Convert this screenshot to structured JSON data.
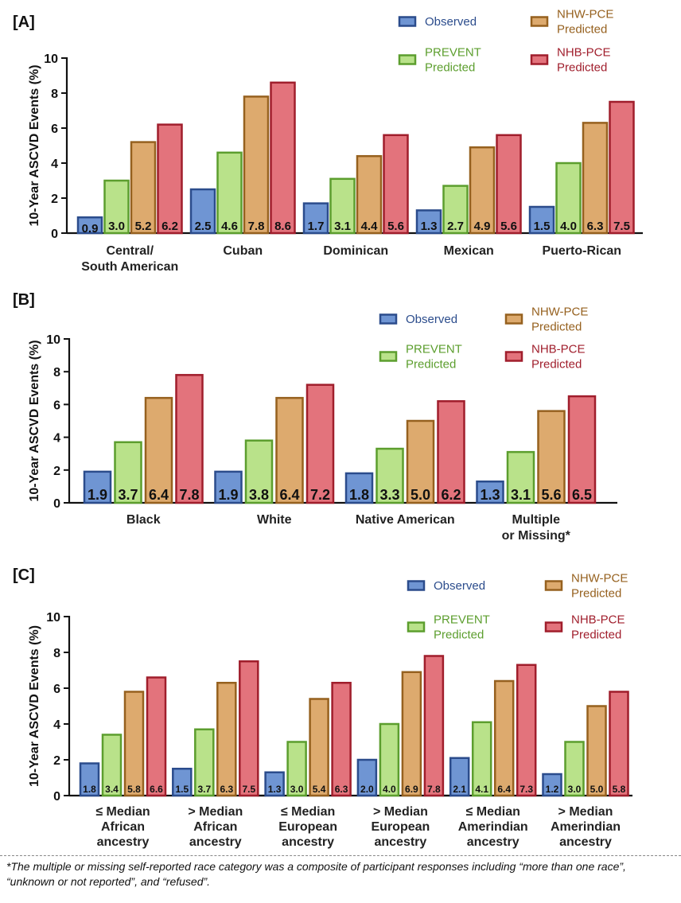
{
  "colors": {
    "observed": {
      "fill": "#6f95d3",
      "stroke": "#2b4c8c"
    },
    "prevent": {
      "fill": "#b9e28a",
      "stroke": "#5c9e2e"
    },
    "nhw": {
      "fill": "#ddaa6e",
      "stroke": "#96611f"
    },
    "nhb": {
      "fill": "#e3737c",
      "stroke": "#a01e2c"
    }
  },
  "legend": {
    "observed": "Observed",
    "prevent": [
      "PREVENT",
      "Predicted"
    ],
    "nhw": [
      "NHW-PCE",
      "Predicted"
    ],
    "nhb": [
      "NHB-PCE",
      "Predicted"
    ]
  },
  "chart_data": [
    {
      "id": "A",
      "panel_label": "[A]",
      "type": "bar",
      "ylabel": "10-Year ASCVD Events (%)",
      "ylim": [
        0,
        10
      ],
      "yticks": [
        0,
        2,
        4,
        6,
        8,
        10
      ],
      "categories": [
        [
          "Central/",
          "South American"
        ],
        [
          "Cuban"
        ],
        [
          "Dominican"
        ],
        [
          "Mexican"
        ],
        [
          "Puerto-Rican"
        ]
      ],
      "series": [
        {
          "name": "Observed",
          "key": "observed",
          "values": [
            0.9,
            2.5,
            1.7,
            1.3,
            1.5
          ]
        },
        {
          "name": "PREVENT Predicted",
          "key": "prevent",
          "values": [
            3.0,
            4.6,
            3.1,
            2.7,
            4.0
          ]
        },
        {
          "name": "NHW-PCE Predicted",
          "key": "nhw",
          "values": [
            5.2,
            7.8,
            4.4,
            4.9,
            6.3
          ]
        },
        {
          "name": "NHB-PCE Predicted",
          "key": "nhb",
          "values": [
            6.2,
            8.6,
            5.6,
            5.6,
            7.5
          ]
        }
      ]
    },
    {
      "id": "B",
      "panel_label": "[B]",
      "type": "bar",
      "ylabel": "10-Year ASCVD Events (%)",
      "ylim": [
        0,
        10
      ],
      "yticks": [
        0,
        2,
        4,
        6,
        8,
        10
      ],
      "categories": [
        [
          "Black"
        ],
        [
          "White"
        ],
        [
          "Native American"
        ],
        [
          "Multiple",
          "or Missing*"
        ]
      ],
      "series": [
        {
          "name": "Observed",
          "key": "observed",
          "values": [
            1.9,
            1.9,
            1.8,
            1.3
          ]
        },
        {
          "name": "PREVENT Predicted",
          "key": "prevent",
          "values": [
            3.7,
            3.8,
            3.3,
            3.1
          ]
        },
        {
          "name": "NHW-PCE Predicted",
          "key": "nhw",
          "values": [
            6.4,
            6.4,
            5.0,
            5.6
          ]
        },
        {
          "name": "NHB-PCE Predicted",
          "key": "nhb",
          "values": [
            7.8,
            7.2,
            6.2,
            6.5
          ]
        }
      ]
    },
    {
      "id": "C",
      "panel_label": "[C]",
      "type": "bar",
      "ylabel": "10-Year ASCVD Events (%)",
      "ylim": [
        0,
        10
      ],
      "yticks": [
        0,
        2,
        4,
        6,
        8,
        10
      ],
      "categories": [
        [
          "≤ Median",
          "African",
          "ancestry"
        ],
        [
          "> Median",
          "African",
          "ancestry"
        ],
        [
          "≤ Median",
          "European",
          "ancestry"
        ],
        [
          "> Median",
          "European",
          "ancestry"
        ],
        [
          "≤ Median",
          "Amerindian",
          "ancestry"
        ],
        [
          "> Median",
          "Amerindian",
          "ancestry"
        ]
      ],
      "series": [
        {
          "name": "Observed",
          "key": "observed",
          "values": [
            1.8,
            1.5,
            1.3,
            2.0,
            2.1,
            1.2
          ]
        },
        {
          "name": "PREVENT Predicted",
          "key": "prevent",
          "values": [
            3.4,
            3.7,
            3.0,
            4.0,
            4.1,
            3.0
          ]
        },
        {
          "name": "NHW-PCE Predicted",
          "key": "nhw",
          "values": [
            5.8,
            6.3,
            5.4,
            6.9,
            6.4,
            5.0
          ]
        },
        {
          "name": "NHB-PCE Predicted",
          "key": "nhb",
          "values": [
            6.6,
            7.5,
            6.3,
            7.8,
            7.3,
            5.8
          ]
        }
      ]
    }
  ],
  "footnote": "*The multiple or missing self-reported race category was a composite of participant responses including “more than one race”, “unknown or not reported”, and “refused”."
}
